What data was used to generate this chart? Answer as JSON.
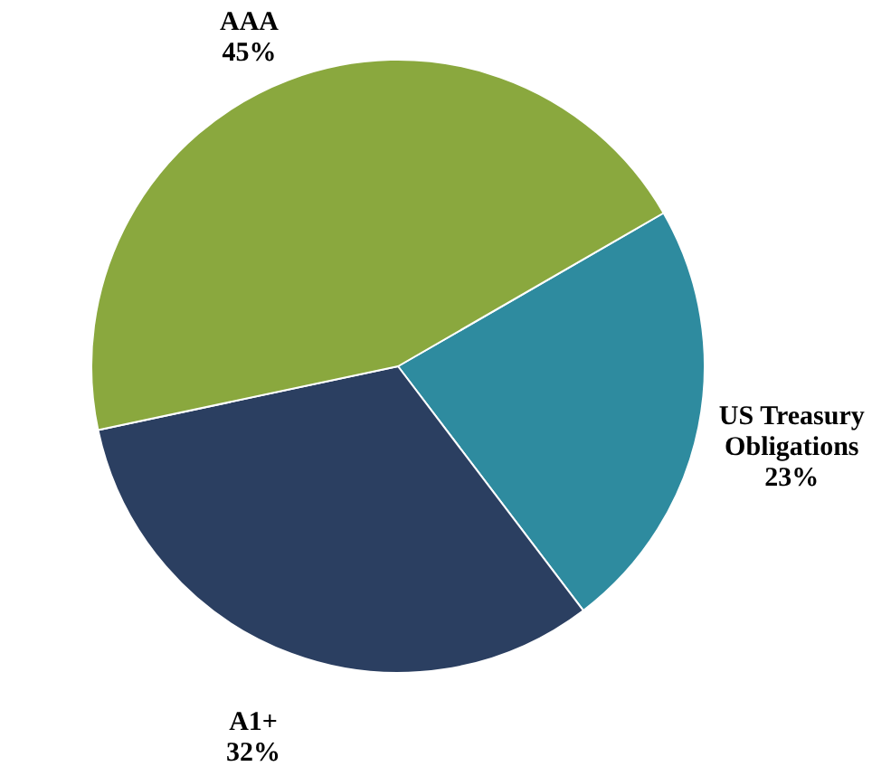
{
  "chart_data": {
    "type": "pie",
    "categories": [
      "US Treasury Obligations",
      "A1+",
      "AAA"
    ],
    "values": [
      23,
      32,
      45
    ],
    "colors": [
      "#2e8b9f",
      "#2b3f61",
      "#8aa83e"
    ],
    "value_labels": [
      "23%",
      "32%",
      "45%"
    ],
    "legend": false
  }
}
